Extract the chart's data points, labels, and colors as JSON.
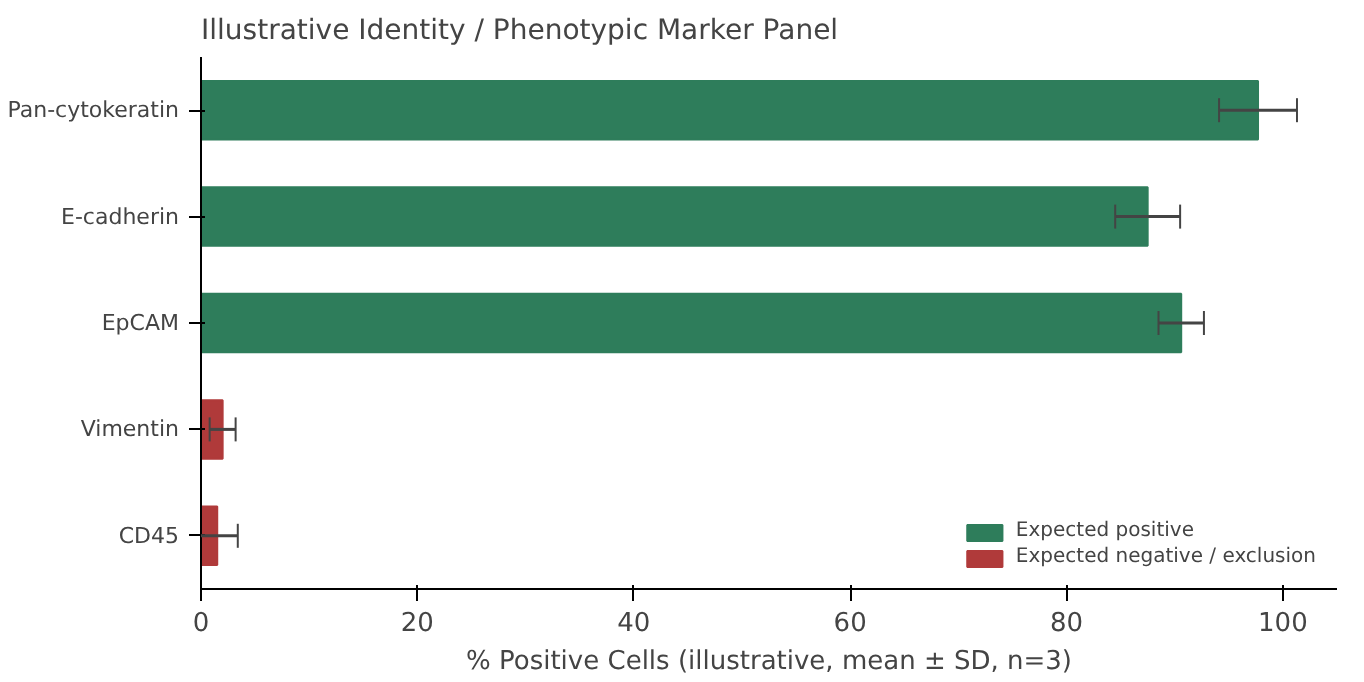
{
  "chart_data": {
    "type": "bar",
    "orientation": "horizontal",
    "title": "Illustrative Identity / Phenotypic Marker Panel",
    "xlabel": "% Positive Cells (illustrative, mean ± SD, n=3)",
    "categories": [
      "Pan-cytokeratin",
      "E-cadherin",
      "EpCAM",
      "Vimentin",
      "CD45"
    ],
    "series": [
      {
        "name": "Expected positive",
        "color": "#2e7d5b",
        "values": [
          97.7,
          87.5,
          90.6,
          null,
          null
        ],
        "errors": [
          3.6,
          3.0,
          2.1,
          null,
          null
        ]
      },
      {
        "name": "Expected negative / exclusion",
        "color": "#b03a3a",
        "values": [
          null,
          null,
          null,
          2.0,
          1.5
        ],
        "errors": [
          null,
          null,
          null,
          1.2,
          1.9
        ]
      }
    ],
    "xlim": [
      0,
      105
    ],
    "xticks": [
      0,
      20,
      40,
      60,
      80,
      100
    ],
    "grid": false,
    "legend": "bottom right"
  }
}
